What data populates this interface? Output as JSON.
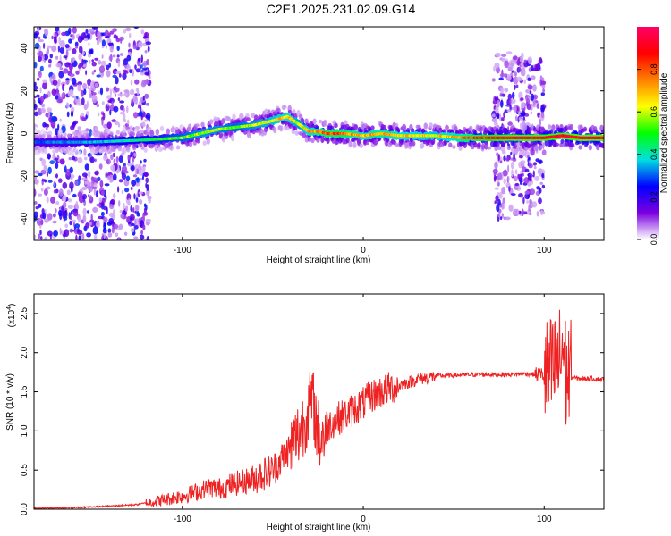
{
  "title": "C2E1.2025.231.02.09.G14",
  "chart_data": [
    {
      "type": "heatmap",
      "xlabel": "Height of straight line (km)",
      "ylabel": "Frequency (Hz)",
      "xlim": [
        -182,
        133
      ],
      "ylim": [
        -50,
        50
      ],
      "xticks": [
        -100,
        0,
        100
      ],
      "xtick_labels": [
        "-100",
        "0",
        "100"
      ],
      "yticks": [
        -40,
        -20,
        0,
        20,
        40
      ],
      "ytick_labels": [
        "-40",
        "-20",
        "0",
        "20",
        "40"
      ],
      "colorbar": {
        "label": "Normalized spectral amplitude",
        "range": [
          0,
          1
        ],
        "ticks": [
          0.0,
          0.2,
          0.4,
          0.6,
          0.8
        ],
        "tick_labels": [
          "0.0",
          "0.2",
          "0.4",
          "0.6",
          "0.8"
        ],
        "colors": [
          "#ffffff",
          "#7b00e0",
          "#0000ff",
          "#00e0e0",
          "#00ff00",
          "#ffff00",
          "#ff8000",
          "#ff0000",
          "#ff0066"
        ]
      },
      "features": {
        "main_trace": {
          "x": [
            -182,
            -150,
            -120,
            -100,
            -90,
            -80,
            -70,
            -60,
            -50,
            -42,
            -35,
            -30,
            -25,
            -20,
            -10,
            0,
            10,
            20,
            40,
            55,
            70,
            80,
            90,
            100,
            110,
            120,
            133
          ],
          "freq": [
            -4,
            -4,
            -3,
            -2,
            0,
            2,
            3,
            4,
            6,
            8,
            4,
            1,
            1,
            0,
            0,
            -1,
            0,
            -1,
            -1,
            -2,
            -2,
            -2,
            -2,
            -2,
            -1,
            -2,
            -2
          ],
          "amplitude": [
            0.3,
            0.35,
            0.45,
            0.55,
            0.6,
            0.6,
            0.55,
            0.6,
            0.65,
            0.7,
            0.6,
            0.7,
            0.75,
            0.8,
            0.8,
            0.7,
            0.75,
            0.7,
            0.65,
            0.75,
            0.9,
            0.95,
            0.95,
            0.95,
            0.95,
            0.97,
            0.97
          ]
        },
        "noise_regions": [
          {
            "x_range": [
              -182,
              -118
            ],
            "freq_range": [
              -50,
              50
            ],
            "amplitude": 0.25
          },
          {
            "x_range": [
              72,
              88
            ],
            "freq_range": [
              -40,
              38
            ],
            "amplitude": 0.2
          },
          {
            "x_range": [
              88,
              100
            ],
            "freq_range": [
              -38,
              35
            ],
            "amplitude": 0.2
          }
        ]
      }
    },
    {
      "type": "line",
      "xlabel": "Height of straight line (km)",
      "ylabel": "SNR (10 * v/v)",
      "y_multiplier": "(x10",
      "y_multiplier_exp": "4",
      "y_multiplier_close": ")",
      "xlim": [
        -182,
        133
      ],
      "ylim": [
        0,
        2.75
      ],
      "xticks": [
        -100,
        0,
        100
      ],
      "xtick_labels": [
        "-100",
        "0",
        "100"
      ],
      "yticks": [
        0.0,
        0.5,
        1.0,
        1.5,
        2.0,
        2.5
      ],
      "ytick_labels": [
        "0.0",
        "0.5",
        "1.0",
        "1.5",
        "2.0",
        "2.5"
      ],
      "series": [
        {
          "color": "#ee2222",
          "x": [
            -182,
            -160,
            -140,
            -125,
            -115,
            -110,
            -100,
            -95,
            -90,
            -85,
            -80,
            -75,
            -70,
            -65,
            -60,
            -55,
            -50,
            -45,
            -40,
            -36,
            -33,
            -30,
            -28,
            -26,
            -24,
            -22,
            -20,
            -18,
            -15,
            -10,
            -5,
            0,
            5,
            10,
            15,
            20,
            25,
            30,
            35,
            40,
            50,
            60,
            70,
            80,
            90,
            95,
            100,
            103,
            105,
            107,
            109,
            110,
            111,
            112,
            113,
            115,
            120,
            125,
            133
          ],
          "y": [
            0.01,
            0.02,
            0.04,
            0.06,
            0.1,
            0.12,
            0.17,
            0.2,
            0.24,
            0.28,
            0.26,
            0.3,
            0.33,
            0.36,
            0.4,
            0.45,
            0.5,
            0.65,
            0.8,
            0.95,
            1.1,
            1.3,
            1.4,
            1.1,
            0.9,
            0.95,
            1.05,
            1.1,
            1.15,
            1.2,
            1.28,
            1.35,
            1.45,
            1.5,
            1.55,
            1.58,
            1.62,
            1.66,
            1.68,
            1.7,
            1.71,
            1.72,
            1.72,
            1.72,
            1.73,
            1.72,
            1.72,
            1.72,
            1.75,
            1.8,
            1.9,
            2.1,
            2.0,
            1.7,
            1.72,
            1.68,
            1.67,
            1.67,
            1.66
          ]
        }
      ]
    }
  ]
}
